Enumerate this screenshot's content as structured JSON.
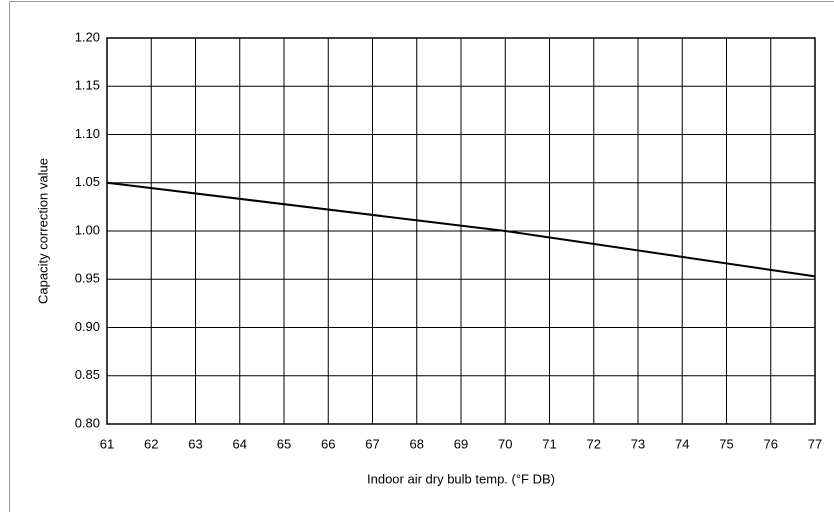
{
  "chart_data": {
    "type": "line",
    "xlabel": "Indoor air dry bulb temp. (°F DB)",
    "ylabel": "Capacity correction value",
    "x": [
      61,
      70,
      77
    ],
    "series": [
      {
        "color": "#000000",
        "values": [
          1.05,
          1.0,
          0.953
        ]
      }
    ],
    "xlim": [
      61,
      77
    ],
    "xticks": [
      61,
      62,
      63,
      64,
      65,
      66,
      67,
      68,
      69,
      70,
      71,
      72,
      73,
      74,
      75,
      76,
      77
    ],
    "ylim": [
      0.8,
      1.2
    ],
    "yticks": [
      {
        "value": 0.8,
        "label": "0.80"
      },
      0.85,
      {
        "value": 0.9,
        "label": "0.90"
      },
      0.95,
      {
        "value": 1.0,
        "label": "1.00"
      },
      1.05,
      {
        "value": 1.1,
        "label": "1.10"
      },
      1.15,
      {
        "value": 1.2,
        "label": "1.20"
      }
    ],
    "grid": true
  }
}
